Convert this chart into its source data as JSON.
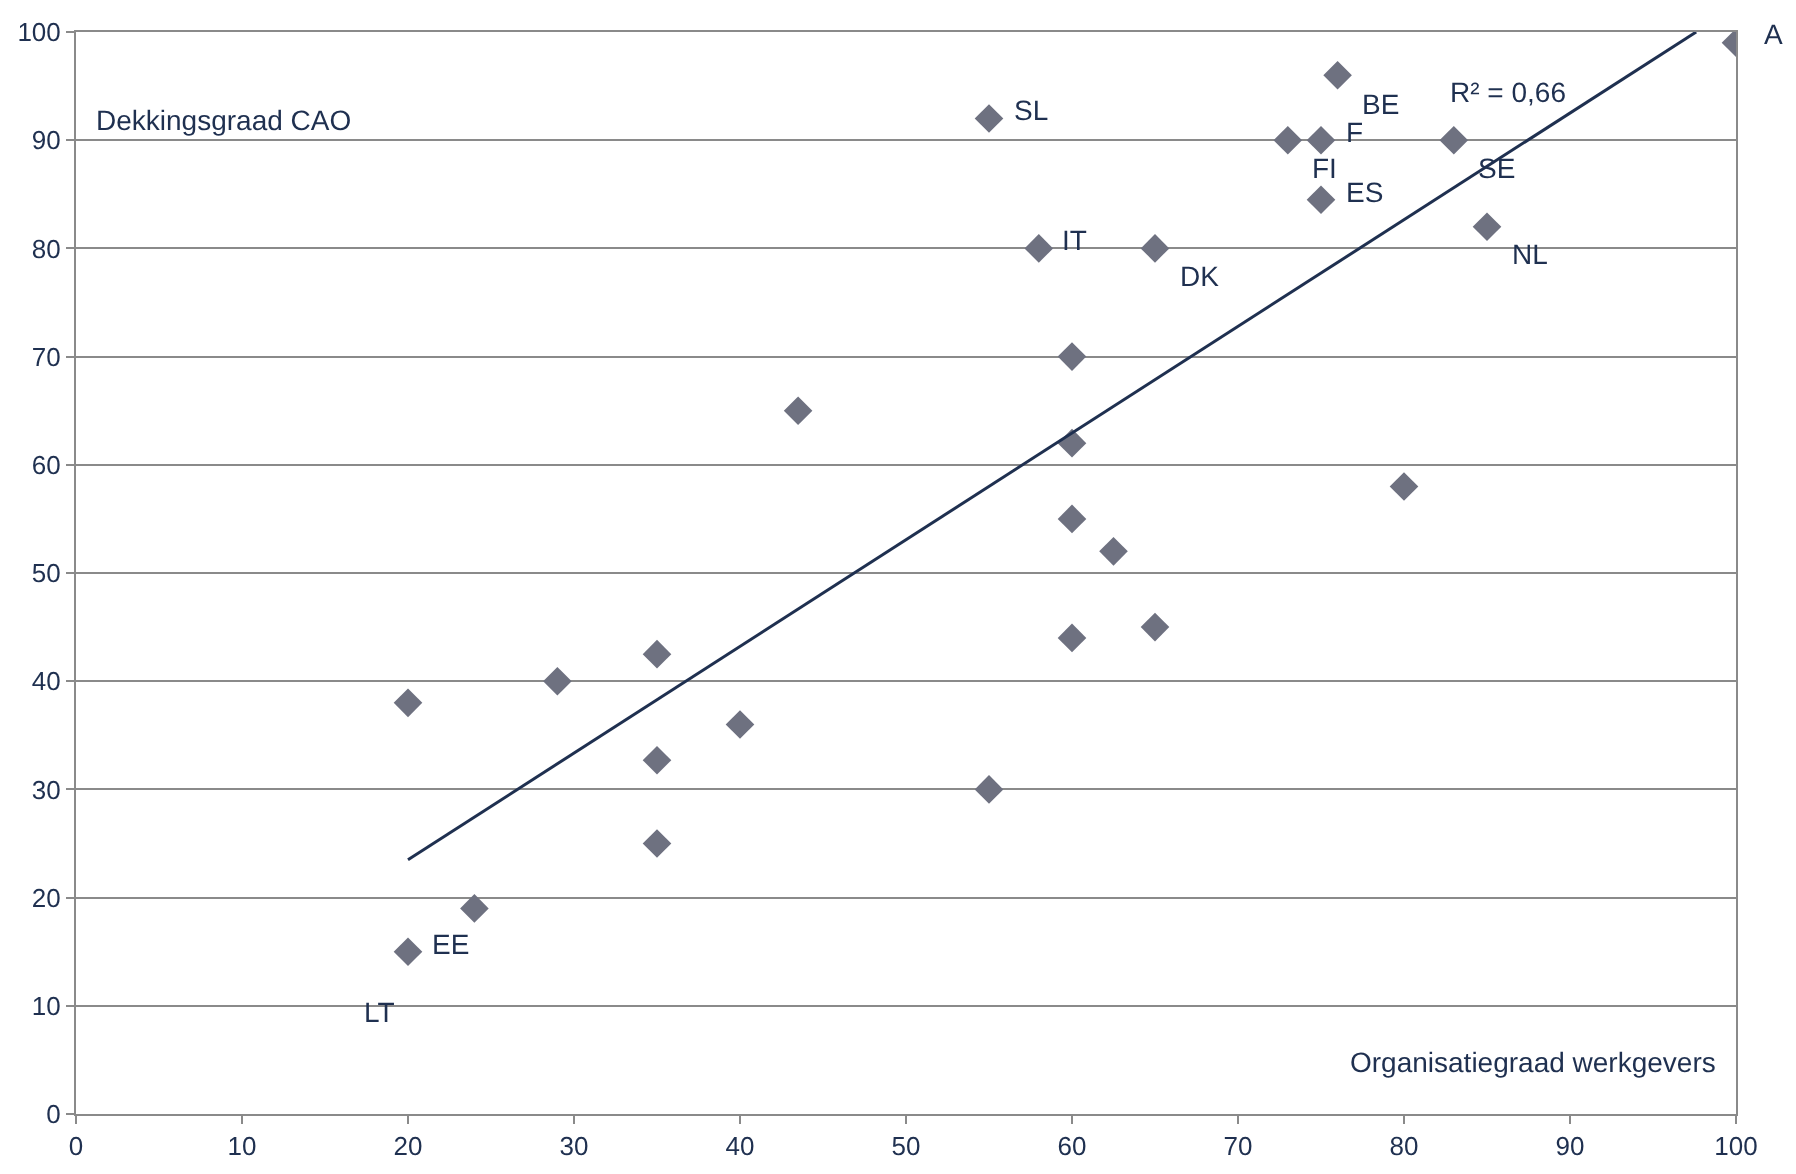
{
  "chart_data": {
    "type": "scatter",
    "xlabel": "Organisatiegraad werkgevers",
    "ylabel": "Dekkingsgraad CAO",
    "xlim": [
      0,
      100
    ],
    "ylim": [
      0,
      100
    ],
    "xticks": [
      0,
      10,
      20,
      30,
      40,
      50,
      60,
      70,
      80,
      90,
      100
    ],
    "yticks": [
      0,
      10,
      20,
      30,
      40,
      50,
      60,
      70,
      80,
      90,
      100
    ],
    "grid": "y",
    "marker": "diamond",
    "series": [
      {
        "color": "#6e7180",
        "x": [
          100,
          76,
          55,
          73,
          75,
          83,
          75,
          85,
          58,
          65,
          60,
          43.5,
          60,
          80,
          60,
          62.5,
          65,
          60,
          35,
          29,
          20,
          40,
          35,
          55,
          35,
          24,
          20
        ],
        "values": [
          99,
          96,
          92,
          90,
          90,
          90,
          84.5,
          82,
          80,
          80,
          70,
          65,
          62,
          58,
          55,
          52,
          45,
          44,
          42.5,
          40,
          38,
          36,
          32.7,
          30,
          25,
          19,
          15
        ]
      },
      {
        "type": "line",
        "color": "#1f3050",
        "line_style": "solid",
        "marker": "none",
        "x": [
          20,
          97.6
        ],
        "values": [
          23.5,
          100
        ]
      }
    ],
    "annotations": [
      {
        "text": "A",
        "x": 100,
        "y": 99
      },
      {
        "text": "BE",
        "x": 76,
        "y": 96
      },
      {
        "text": "SL",
        "x": 55,
        "y": 92
      },
      {
        "text": "FI",
        "x": 73,
        "y": 90
      },
      {
        "text": "F",
        "x": 75,
        "y": 90
      },
      {
        "text": "SE",
        "x": 83,
        "y": 90
      },
      {
        "text": "ES",
        "x": 75,
        "y": 84.5
      },
      {
        "text": "NL",
        "x": 85,
        "y": 82
      },
      {
        "text": "IT",
        "x": 58,
        "y": 80
      },
      {
        "text": "DK",
        "x": 65,
        "y": 80
      },
      {
        "text": "EE",
        "x": 20,
        "y": 15
      },
      {
        "text": "LT",
        "x": 20,
        "y": 15
      },
      {
        "text": "R² = 0,66",
        "x": 91,
        "y": 93
      }
    ]
  }
}
